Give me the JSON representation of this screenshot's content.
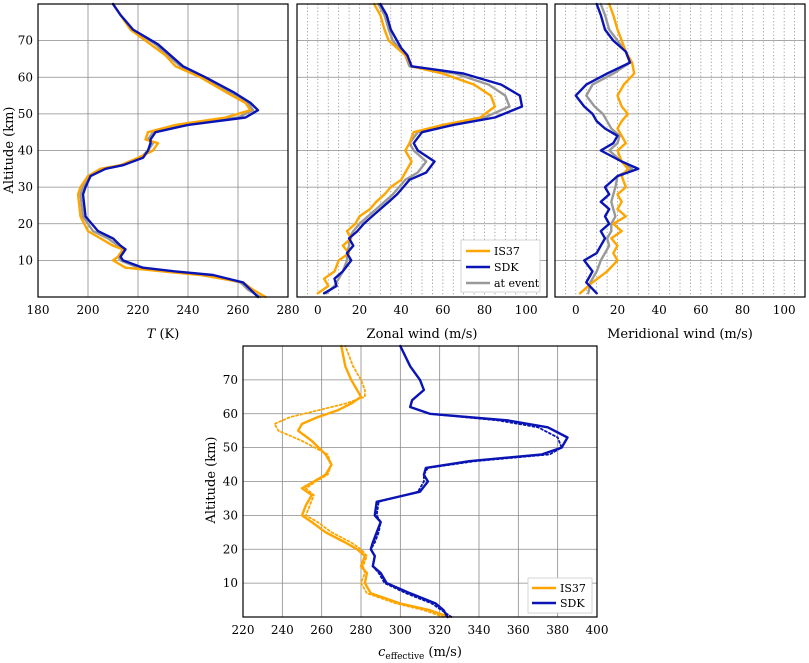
{
  "colors": {
    "IS37": "#ffa500",
    "SDK": "#0a14b4",
    "at_event": "#999999"
  },
  "chart_data": [
    {
      "id": "temperature",
      "type": "line",
      "xlabel": "T (K)",
      "ylabel": "Altitude (km)",
      "xlim": [
        180,
        280
      ],
      "ylim": [
        0,
        80
      ],
      "xticks": [
        180,
        200,
        220,
        240,
        260,
        280
      ],
      "yticks": [
        10,
        20,
        30,
        40,
        50,
        60,
        70
      ],
      "grid": "solid",
      "series": [
        {
          "key": "IS37",
          "style": "solid",
          "x": [
            271,
            266,
            262,
            245,
            230,
            215,
            210,
            212,
            214,
            210,
            205,
            200,
            197,
            196,
            197,
            200,
            205,
            213,
            220,
            226,
            228,
            223,
            224,
            235,
            255,
            265,
            263,
            255,
            245,
            235,
            231,
            225,
            217,
            213,
            210
          ],
          "y": [
            0,
            2,
            4,
            6,
            7,
            8,
            10,
            11,
            13,
            14,
            16,
            18,
            22,
            28,
            30,
            33,
            35,
            36,
            38,
            40,
            42,
            43,
            45,
            47,
            49,
            51,
            53,
            56,
            60,
            63,
            66,
            69,
            73,
            77,
            80
          ]
        },
        {
          "key": "SDK",
          "style": "solid",
          "x": [
            268,
            265,
            262,
            250,
            235,
            222,
            214,
            213,
            215,
            213,
            210,
            204,
            199,
            198,
            199,
            201,
            207,
            214,
            222,
            224,
            225,
            225,
            227,
            240,
            263,
            268,
            265,
            258,
            247,
            238,
            233,
            228,
            218,
            213,
            210
          ],
          "y": [
            0,
            2,
            4,
            6,
            7,
            8,
            10,
            11,
            13,
            14,
            16,
            18,
            22,
            28,
            30,
            33,
            35,
            36,
            38,
            40,
            42,
            43,
            45,
            47,
            49,
            51,
            53,
            56,
            60,
            63,
            66,
            69,
            73,
            77,
            80
          ]
        },
        {
          "key": "at_event",
          "style": "solid",
          "x": [
            269,
            264,
            261,
            248,
            232,
            220,
            213,
            212,
            214,
            212,
            208,
            202,
            198,
            197,
            198,
            200,
            206,
            213,
            221,
            224,
            226,
            224,
            226,
            238,
            260,
            266,
            264,
            256,
            246,
            237,
            232,
            227,
            218,
            213,
            210
          ],
          "y": [
            0,
            2,
            4,
            6,
            7,
            8,
            10,
            11,
            13,
            14,
            16,
            18,
            22,
            28,
            30,
            33,
            35,
            36,
            38,
            40,
            42,
            43,
            45,
            47,
            49,
            51,
            53,
            56,
            60,
            63,
            66,
            69,
            73,
            77,
            80
          ]
        }
      ]
    },
    {
      "id": "zonal",
      "type": "line",
      "xlabel": "Zonal wind (m/s)",
      "ylabel": "",
      "xlim": [
        -10,
        110
      ],
      "ylim": [
        0,
        80
      ],
      "xticks": [
        0,
        20,
        40,
        60,
        80,
        100
      ],
      "yticks": [
        10,
        20,
        30,
        40,
        50,
        60,
        70
      ],
      "grid": "dotted",
      "legend": {
        "position": "bottom-right",
        "entries": [
          "IS37",
          "SDK",
          "at event"
        ]
      },
      "series": [
        {
          "key": "IS37",
          "style": "solid",
          "x": [
            0,
            5,
            3,
            8,
            10,
            15,
            12,
            16,
            14,
            18,
            20,
            25,
            28,
            32,
            35,
            40,
            42,
            45,
            42,
            44,
            46,
            60,
            78,
            85,
            83,
            75,
            60,
            45,
            42,
            38,
            34,
            32,
            30,
            27
          ],
          "y": [
            1,
            3,
            5,
            7,
            10,
            12,
            14,
            16,
            18,
            20,
            22,
            24,
            26,
            28,
            30,
            32,
            34,
            37,
            40,
            42,
            45,
            47,
            49,
            52,
            55,
            58,
            61,
            63,
            66,
            68,
            70,
            73,
            77,
            80
          ]
        },
        {
          "key": "SDK",
          "style": "solid",
          "x": [
            3,
            9,
            8,
            12,
            16,
            14,
            17,
            15,
            19,
            22,
            26,
            30,
            34,
            38,
            41,
            44,
            52,
            56,
            48,
            46,
            50,
            65,
            85,
            98,
            97,
            88,
            70,
            45,
            43,
            40,
            38,
            35,
            33,
            30
          ],
          "y": [
            1,
            3,
            5,
            7,
            10,
            12,
            14,
            16,
            18,
            20,
            22,
            24,
            26,
            28,
            30,
            32,
            34,
            37,
            40,
            42,
            45,
            47,
            49,
            52,
            55,
            58,
            61,
            63,
            66,
            68,
            70,
            73,
            77,
            80
          ]
        },
        {
          "key": "at_event",
          "style": "solid",
          "x": [
            4,
            8,
            10,
            12,
            14,
            14,
            15,
            15,
            17,
            20,
            24,
            28,
            32,
            36,
            39,
            42,
            48,
            52,
            46,
            44,
            48,
            62,
            80,
            92,
            90,
            82,
            66,
            44,
            42,
            39,
            36,
            34,
            32,
            29
          ],
          "y": [
            1,
            3,
            5,
            7,
            10,
            12,
            14,
            16,
            18,
            20,
            22,
            24,
            26,
            28,
            30,
            32,
            34,
            37,
            40,
            42,
            45,
            47,
            49,
            52,
            55,
            58,
            61,
            63,
            66,
            68,
            70,
            73,
            77,
            80
          ]
        }
      ]
    },
    {
      "id": "meridional",
      "type": "line",
      "xlabel": "Meridional wind (m/s)",
      "ylabel": "",
      "xlim": [
        -10,
        110
      ],
      "ylim": [
        0,
        80
      ],
      "xticks": [
        0,
        20,
        40,
        60,
        80,
        100
      ],
      "yticks": [
        10,
        20,
        30,
        40,
        50,
        60,
        70
      ],
      "grid": "dotted",
      "series": [
        {
          "key": "IS37",
          "style": "solid",
          "x": [
            2,
            8,
            15,
            20,
            18,
            20,
            17,
            22,
            18,
            24,
            20,
            22,
            20,
            24,
            22,
            25,
            22,
            20,
            24,
            22,
            20,
            22,
            25,
            22,
            20,
            23,
            28,
            27,
            24,
            22,
            20,
            18,
            16
          ],
          "y": [
            1,
            4,
            7,
            10,
            12,
            14,
            16,
            18,
            20,
            22,
            24,
            26,
            28,
            30,
            33,
            35,
            37,
            40,
            42,
            44,
            46,
            48,
            50,
            52,
            55,
            58,
            61,
            64,
            67,
            70,
            73,
            77,
            80
          ]
        },
        {
          "key": "SDK",
          "style": "solid",
          "x": [
            10,
            5,
            8,
            4,
            10,
            12,
            14,
            12,
            16,
            14,
            16,
            12,
            16,
            14,
            20,
            30,
            22,
            12,
            18,
            20,
            14,
            10,
            8,
            4,
            0,
            5,
            15,
            26,
            24,
            18,
            14,
            12,
            10
          ],
          "y": [
            1,
            4,
            7,
            10,
            12,
            14,
            16,
            18,
            20,
            22,
            24,
            26,
            28,
            30,
            33,
            35,
            37,
            40,
            42,
            44,
            46,
            48,
            50,
            52,
            55,
            58,
            61,
            64,
            67,
            70,
            73,
            77,
            80
          ]
        },
        {
          "key": "at_event",
          "style": "solid",
          "x": [
            6,
            7,
            10,
            12,
            14,
            16,
            15,
            17,
            17,
            19,
            18,
            17,
            18,
            19,
            20,
            27,
            22,
            16,
            20,
            21,
            17,
            15,
            13,
            9,
            5,
            8,
            18,
            26,
            24,
            20,
            16,
            14,
            12
          ],
          "y": [
            1,
            4,
            7,
            10,
            12,
            14,
            16,
            18,
            20,
            22,
            24,
            26,
            28,
            30,
            33,
            35,
            37,
            40,
            42,
            44,
            46,
            48,
            50,
            52,
            55,
            58,
            61,
            64,
            67,
            70,
            73,
            77,
            80
          ]
        }
      ]
    },
    {
      "id": "ceffective",
      "type": "line",
      "xlabel": "c_effective (m/s)",
      "xlabel_main": "c",
      "xlabel_sub": "effective",
      "xlabel_unit": "(m/s)",
      "ylabel": "Altitude (km)",
      "xlim": [
        220,
        400
      ],
      "ylim": [
        0,
        80
      ],
      "xticks": [
        220,
        240,
        260,
        280,
        300,
        320,
        340,
        360,
        380,
        400
      ],
      "yticks": [
        10,
        20,
        30,
        40,
        50,
        60,
        70
      ],
      "grid": "solid",
      "legend": {
        "position": "bottom-right",
        "entries": [
          "IS37",
          "SDK"
        ]
      },
      "series": [
        {
          "key": "IS37",
          "style": "solid",
          "x": [
            325,
            315,
            300,
            285,
            282,
            283,
            280,
            282,
            278,
            272,
            262,
            255,
            250,
            252,
            255,
            250,
            256,
            262,
            265,
            262,
            255,
            248,
            250,
            258,
            268,
            275,
            280,
            278,
            275,
            272,
            270
          ],
          "y": [
            0,
            2,
            4,
            7,
            10,
            13,
            15,
            18,
            20,
            22,
            25,
            28,
            30,
            33,
            36,
            38,
            40,
            42,
            45,
            48,
            52,
            55,
            57,
            59,
            61,
            63,
            65,
            67,
            70,
            74,
            80
          ]
        },
        {
          "key": "IS37_dotted",
          "style": "dotted",
          "x": [
            322,
            312,
            298,
            283,
            280,
            282,
            281,
            283,
            280,
            275,
            265,
            258,
            252,
            254,
            256,
            252,
            257,
            263,
            265,
            263,
            250,
            238,
            236,
            244,
            258,
            272,
            282,
            282,
            280,
            276,
            272
          ],
          "y": [
            0,
            2,
            4,
            7,
            10,
            13,
            15,
            18,
            20,
            22,
            25,
            28,
            30,
            33,
            36,
            38,
            40,
            42,
            45,
            48,
            52,
            55,
            57,
            59,
            61,
            63,
            65,
            67,
            70,
            74,
            80
          ]
        },
        {
          "key": "SDK",
          "style": "solid",
          "x": [
            324,
            322,
            318,
            305,
            293,
            290,
            286,
            287,
            285,
            286,
            288,
            290,
            287,
            288,
            310,
            314,
            312,
            313,
            335,
            372,
            382,
            385,
            375,
            355,
            315,
            305,
            306,
            312,
            310,
            305,
            300
          ],
          "y": [
            0,
            2,
            4,
            7,
            10,
            13,
            15,
            18,
            20,
            22,
            25,
            28,
            30,
            34,
            37,
            40,
            42,
            44,
            46,
            48,
            50,
            53,
            56,
            58,
            60,
            62,
            64,
            67,
            70,
            74,
            80
          ]
        },
        {
          "key": "SDK_dotted",
          "style": "dotted",
          "x": [
            326,
            321,
            316,
            303,
            292,
            289,
            286,
            287,
            285,
            287,
            289,
            290,
            288,
            289,
            309,
            312,
            312,
            314,
            338,
            376,
            382,
            380,
            370,
            350,
            315,
            305,
            306,
            312,
            310,
            305,
            300
          ],
          "y": [
            0,
            2,
            4,
            7,
            10,
            13,
            15,
            18,
            20,
            22,
            25,
            28,
            30,
            34,
            37,
            40,
            42,
            44,
            46,
            48,
            50,
            53,
            56,
            58,
            60,
            62,
            64,
            67,
            70,
            74,
            80
          ]
        }
      ]
    }
  ]
}
